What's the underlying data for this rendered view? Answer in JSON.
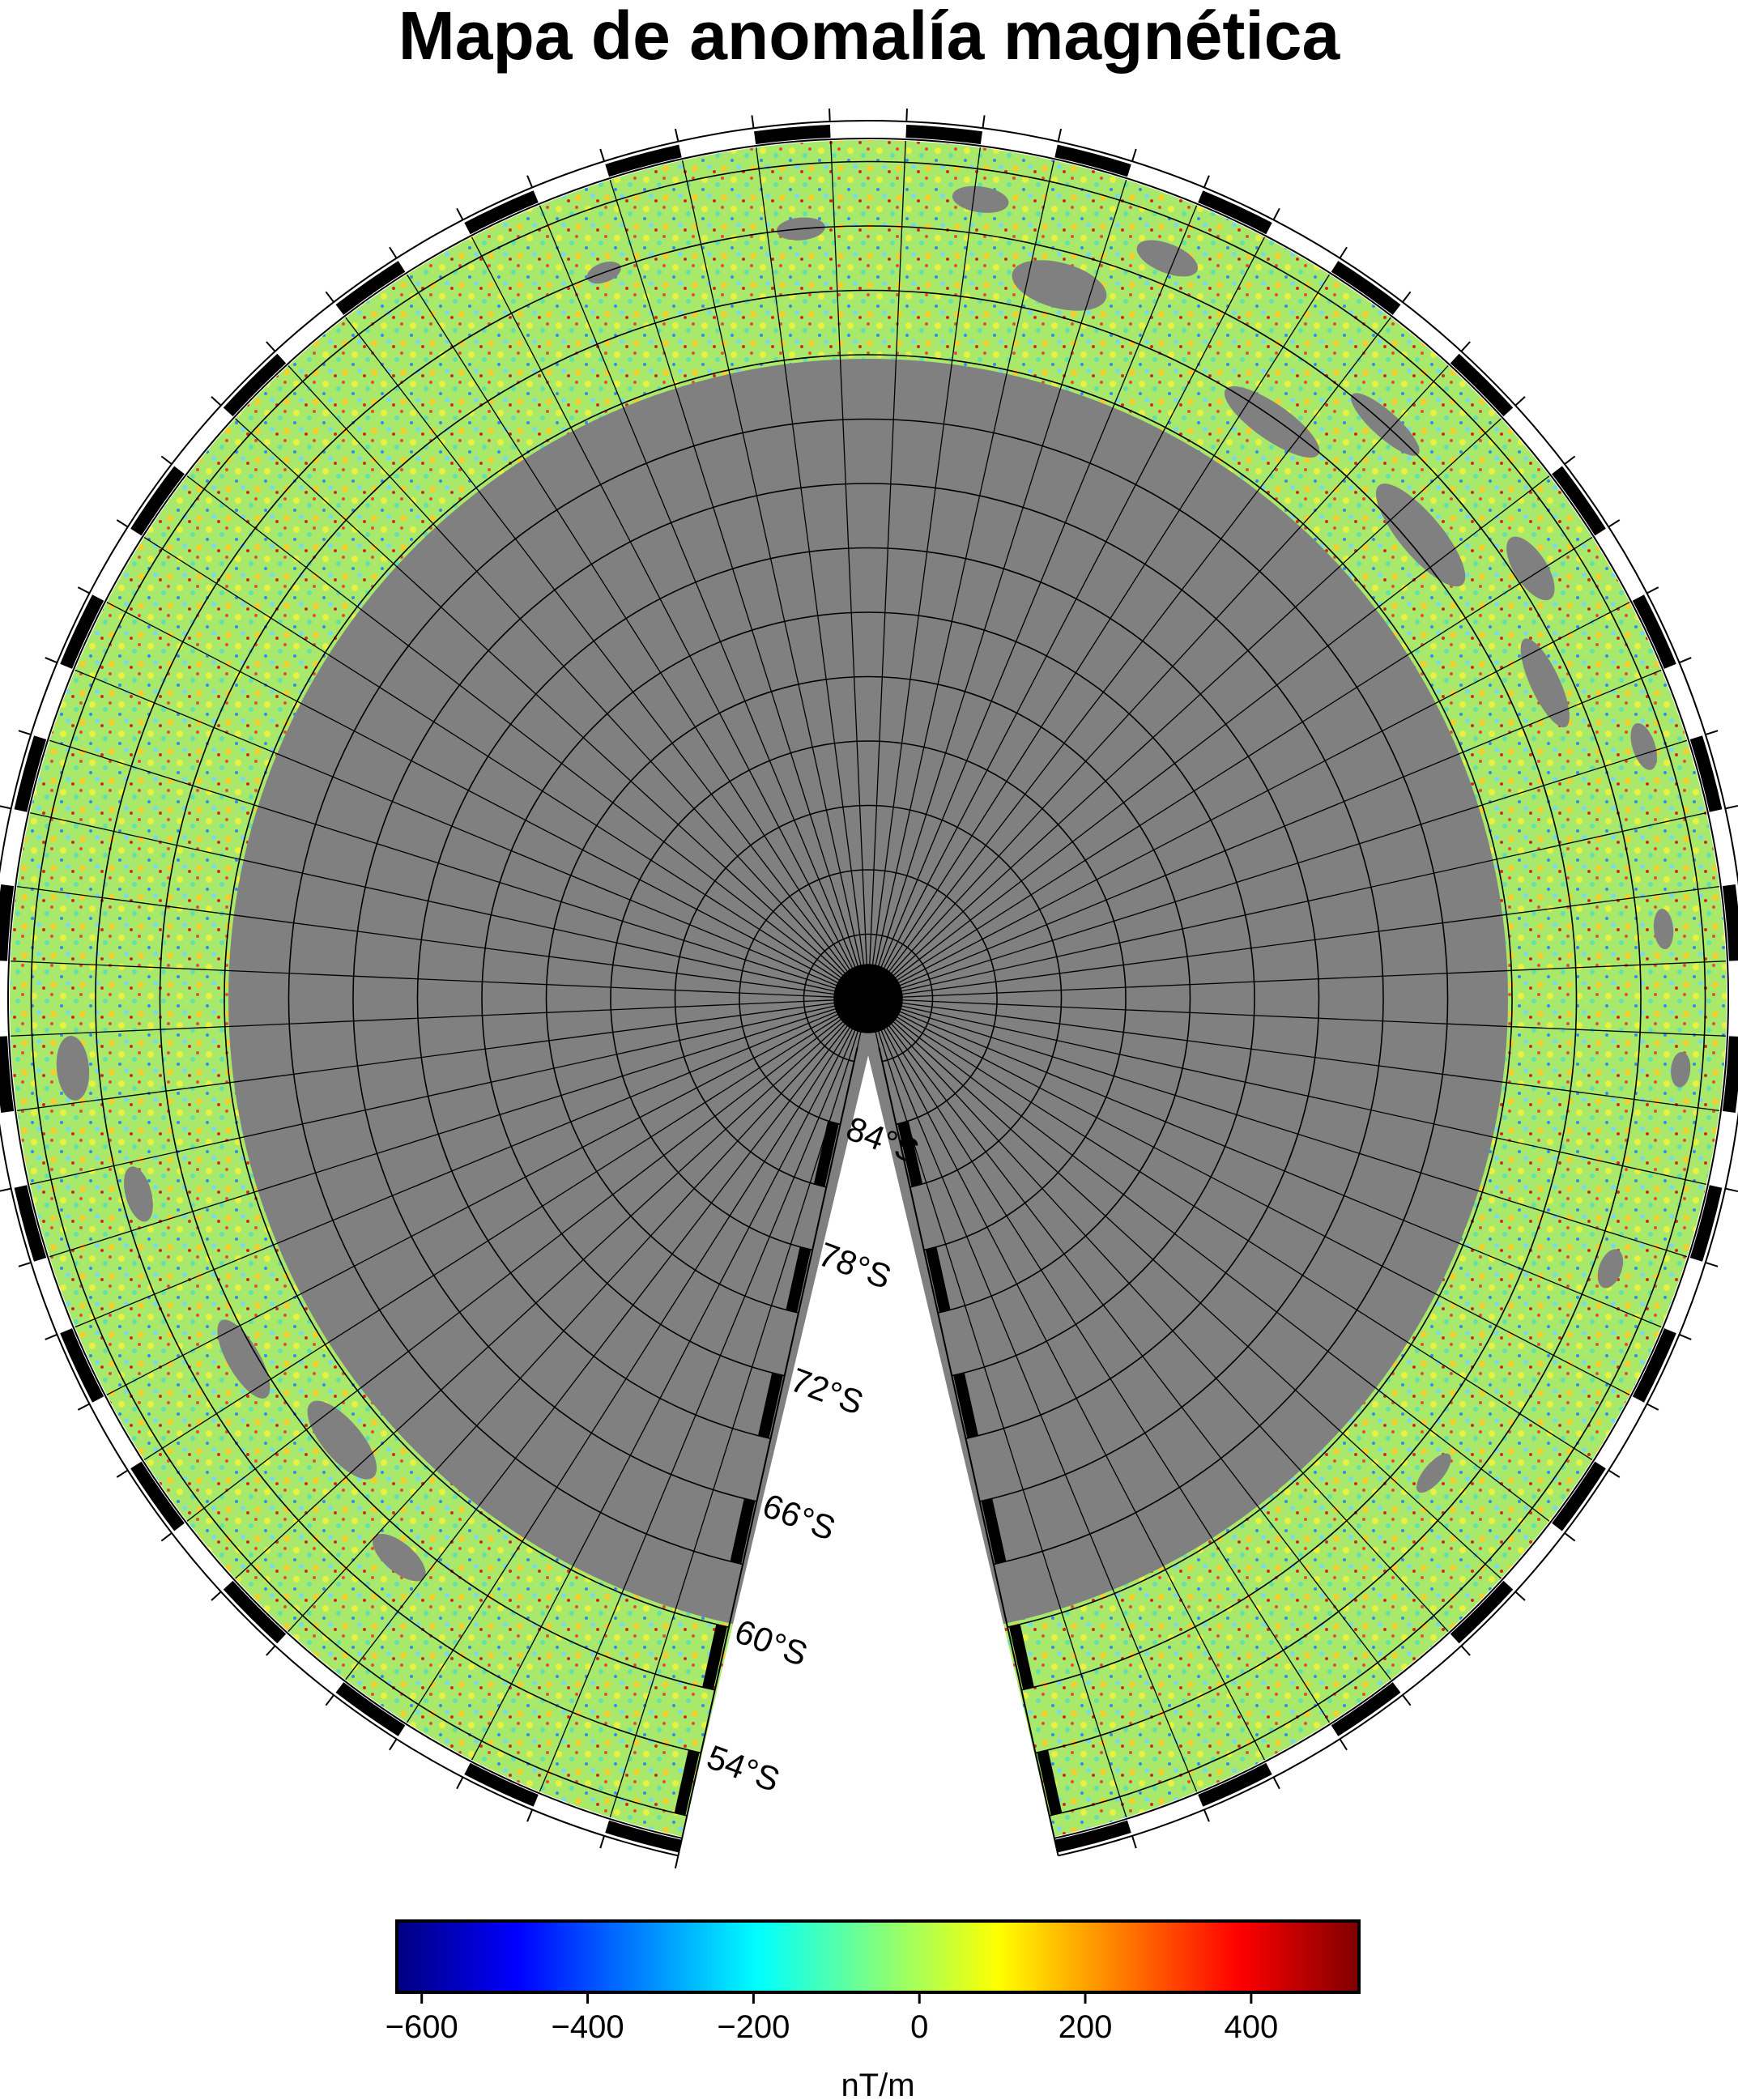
{
  "map": {
    "title": "Mapa de anomalía magnética",
    "projection": "polar-stereographic-south",
    "latitude_labels": [
      "84°S",
      "78°S",
      "72°S",
      "66°S",
      "60°S",
      "54°S"
    ],
    "no_data_color": "#808080",
    "frame_color": "#000000"
  },
  "colorbar": {
    "colormap": "jet",
    "min": -630,
    "max": 530,
    "ticks": [
      "−600",
      "−400",
      "−200",
      "0",
      "200",
      "400"
    ],
    "tick_values": [
      -600,
      -400,
      -200,
      0,
      200,
      400
    ],
    "unit": "nT/m",
    "colors": [
      "#00007f",
      "#0000ff",
      "#007fff",
      "#00ffff",
      "#7fff7f",
      "#ffff00",
      "#ff7f00",
      "#ff0000",
      "#7f0000"
    ]
  }
}
